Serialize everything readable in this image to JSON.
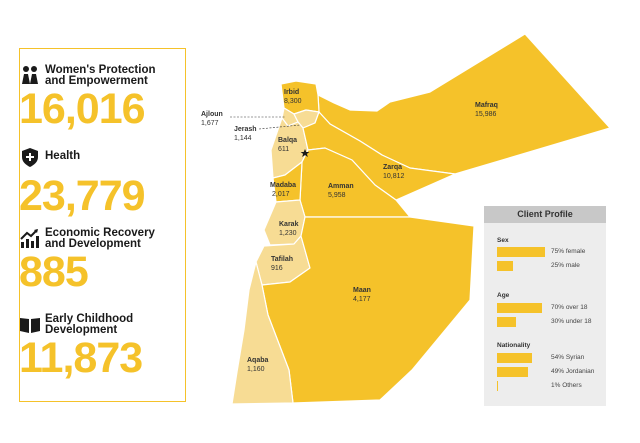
{
  "sectors": [
    {
      "icon": "women-protection-icon",
      "label_1": "Women's Protection",
      "label_2": "and Empowerment",
      "value": "16,016"
    },
    {
      "icon": "health-icon",
      "label_1": "Health",
      "label_2": "",
      "value": "23,779"
    },
    {
      "icon": "economic-growth-icon",
      "label_1": "Economic Recovery",
      "label_2": "and Development",
      "value": "885"
    },
    {
      "icon": "open-book-icon",
      "label_1": "Early Childhood",
      "label_2": "Development",
      "value": "11,873"
    }
  ],
  "regions": [
    {
      "name": "Irbid",
      "value": "8,300"
    },
    {
      "name": "Mafraq",
      "value": "15,986"
    },
    {
      "name": "Balqa",
      "value": "611"
    },
    {
      "name": "Zarqa",
      "value": "10,812"
    },
    {
      "name": "Madaba",
      "value": "2,017"
    },
    {
      "name": "Amman",
      "value": "5,958"
    },
    {
      "name": "Karak",
      "value": "1,230"
    },
    {
      "name": "Tafilah",
      "value": "916"
    },
    {
      "name": "Maan",
      "value": "4,177"
    },
    {
      "name": "Aqaba",
      "value": "1,160"
    },
    {
      "name": "Ajloun",
      "value": "1,677"
    },
    {
      "name": "Jerash",
      "value": "1,144"
    }
  ],
  "colors": {
    "accent": "#f5c22a",
    "light": "#f7dc94",
    "border": "#ffffff"
  },
  "profile": {
    "title": "Client Profile",
    "groups": [
      {
        "title": "Sex",
        "rows": [
          {
            "pct": 75,
            "text": "75% female"
          },
          {
            "pct": 25,
            "text": "25% male"
          }
        ]
      },
      {
        "title": "Age",
        "rows": [
          {
            "pct": 70,
            "text": "70% over 18"
          },
          {
            "pct": 30,
            "text": "30% under 18"
          }
        ]
      },
      {
        "title": "Nationality",
        "rows": [
          {
            "pct": 54,
            "text": "54% Syrian"
          },
          {
            "pct": 49,
            "text": "49% Jordanian"
          },
          {
            "pct": 1,
            "text": "1% Others"
          }
        ]
      }
    ]
  }
}
